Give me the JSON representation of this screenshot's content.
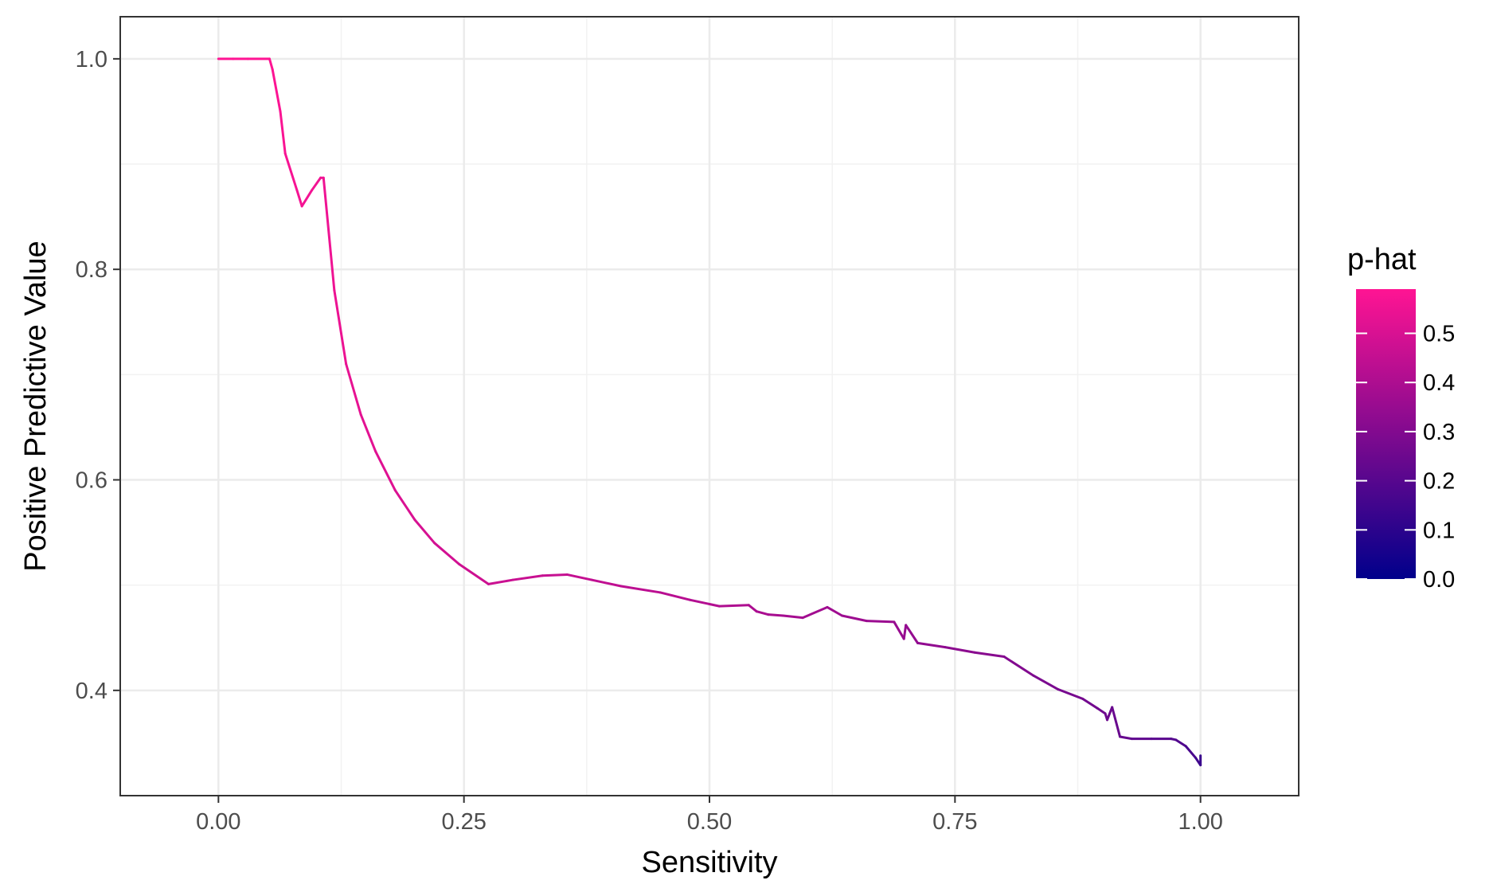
{
  "chart_data": {
    "type": "line",
    "title": "",
    "xlabel": "Sensitivity",
    "ylabel": "Positive Predictive Value",
    "xlim": [
      -0.1,
      1.1
    ],
    "ylim": [
      0.3,
      1.04
    ],
    "x_ticks": [
      0.0,
      0.25,
      0.5,
      0.75,
      1.0
    ],
    "x_tick_labels": [
      "0.00",
      "0.25",
      "0.50",
      "0.75",
      "1.00"
    ],
    "y_ticks": [
      0.4,
      0.6,
      0.8,
      1.0
    ],
    "y_tick_labels": [
      "0.4",
      "0.6",
      "0.8",
      "1.0"
    ],
    "grid": true,
    "legend": {
      "title": "p-hat",
      "placement": "right",
      "type": "colorbar",
      "range": [
        0.0,
        0.59
      ],
      "ticks": [
        0.0,
        0.1,
        0.2,
        0.3,
        0.4,
        0.5
      ],
      "tick_labels": [
        "0.0",
        "0.1",
        "0.2",
        "0.3",
        "0.4",
        "0.5"
      ],
      "low_color": "#00008B",
      "high_color": "#FF1493"
    },
    "series": [
      {
        "x": [
          0.0,
          0.015,
          0.03,
          0.052,
          0.055,
          0.063,
          0.068,
          0.08,
          0.085,
          0.095,
          0.104,
          0.107,
          0.118,
          0.13,
          0.145,
          0.16,
          0.18,
          0.2,
          0.22,
          0.245,
          0.275,
          0.3,
          0.33,
          0.355,
          0.38,
          0.41,
          0.45,
          0.48,
          0.51,
          0.54,
          0.548,
          0.56,
          0.575,
          0.595,
          0.62,
          0.635,
          0.66,
          0.688,
          0.698,
          0.7,
          0.712,
          0.74,
          0.77,
          0.8,
          0.83,
          0.855,
          0.88,
          0.895,
          0.903,
          0.905,
          0.91,
          0.918,
          0.93,
          0.95,
          0.97,
          0.975,
          0.985,
          0.995,
          1.0,
          1.0
        ],
        "y": [
          1.0,
          1.0,
          1.0,
          1.0,
          0.99,
          0.95,
          0.91,
          0.875,
          0.86,
          0.875,
          0.887,
          0.887,
          0.78,
          0.71,
          0.662,
          0.627,
          0.59,
          0.562,
          0.54,
          0.52,
          0.501,
          0.505,
          0.509,
          0.51,
          0.505,
          0.499,
          0.493,
          0.486,
          0.48,
          0.481,
          0.475,
          0.472,
          0.471,
          0.469,
          0.479,
          0.471,
          0.466,
          0.465,
          0.449,
          0.462,
          0.445,
          0.441,
          0.436,
          0.432,
          0.414,
          0.401,
          0.392,
          0.383,
          0.378,
          0.372,
          0.384,
          0.356,
          0.354,
          0.354,
          0.354,
          0.353,
          0.347,
          0.336,
          0.329,
          0.338
        ],
        "p_hat": [
          0.59,
          0.59,
          0.59,
          0.59,
          0.585,
          0.58,
          0.575,
          0.57,
          0.565,
          0.562,
          0.56,
          0.558,
          0.55,
          0.54,
          0.53,
          0.52,
          0.51,
          0.5,
          0.49,
          0.48,
          0.47,
          0.465,
          0.46,
          0.455,
          0.45,
          0.44,
          0.43,
          0.42,
          0.41,
          0.4,
          0.395,
          0.39,
          0.385,
          0.38,
          0.37,
          0.365,
          0.36,
          0.355,
          0.35,
          0.345,
          0.34,
          0.33,
          0.32,
          0.31,
          0.29,
          0.28,
          0.27,
          0.26,
          0.255,
          0.25,
          0.248,
          0.24,
          0.23,
          0.21,
          0.2,
          0.195,
          0.18,
          0.16,
          0.14,
          0.13
        ]
      }
    ]
  }
}
